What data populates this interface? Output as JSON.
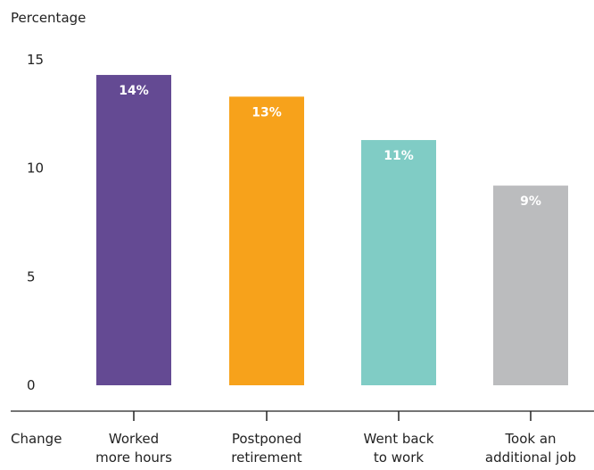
{
  "chart_data": {
    "type": "bar",
    "ylabel": "Percentage",
    "xlabel": "Change",
    "ylim": [
      0,
      15
    ],
    "yticks": [
      0,
      5,
      10,
      15
    ],
    "grid": false,
    "categories": [
      [
        "Worked",
        "more hours"
      ],
      [
        "Postponed",
        "retirement"
      ],
      [
        "Went back",
        "to work"
      ],
      [
        "Took an",
        "additional job"
      ]
    ],
    "values": [
      14.3,
      13.3,
      11.3,
      9.2
    ],
    "data_labels": [
      "14%",
      "13%",
      "11%",
      "9%"
    ],
    "colors": [
      "#644A93",
      "#F7A21B",
      "#80CCC5",
      "#BBBCBE"
    ],
    "label_color": "#ffffff",
    "text_color": "#222222",
    "axis_color": "#222222"
  }
}
